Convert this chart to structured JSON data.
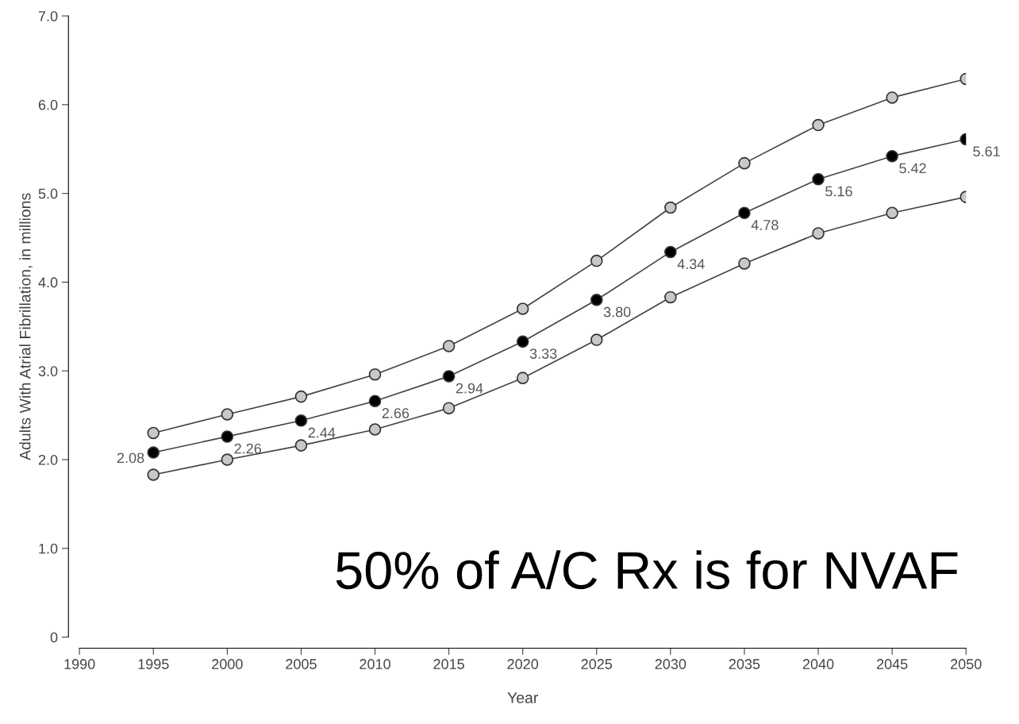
{
  "chart_data": {
    "type": "line",
    "xlabel": "Year",
    "ylabel": "Adults With Atrial Fibrillation, in millions",
    "x": [
      1995,
      2000,
      2005,
      2010,
      2015,
      2020,
      2025,
      2030,
      2035,
      2040,
      2045,
      2050
    ],
    "series": [
      {
        "color": "#c8c8c8",
        "values": [
          2.3,
          2.51,
          2.71,
          2.96,
          3.28,
          3.7,
          4.24,
          4.84,
          5.34,
          5.77,
          6.08,
          6.29
        ]
      },
      {
        "color": "#000000",
        "values": [
          2.08,
          2.26,
          2.44,
          2.66,
          2.94,
          3.33,
          3.8,
          4.34,
          4.78,
          5.16,
          5.42,
          5.61
        ],
        "value_labels": [
          "2.08",
          "2.26",
          "2.44",
          "2.66",
          "2.94",
          "3.33",
          "3.80",
          "4.34",
          "4.78",
          "5.16",
          "5.42",
          "5.61"
        ]
      },
      {
        "color": "#c8c8c8",
        "values": [
          1.83,
          2.0,
          2.16,
          2.34,
          2.58,
          2.92,
          3.35,
          3.83,
          4.21,
          4.55,
          4.78,
          4.96
        ]
      }
    ],
    "xlim": [
      1990,
      2050
    ],
    "xticks": [
      1990,
      1995,
      2000,
      2005,
      2010,
      2015,
      2020,
      2025,
      2030,
      2035,
      2040,
      2045,
      2050
    ],
    "ylim": [
      0,
      7.0
    ],
    "yticks": [
      {
        "value": 0,
        "label": "0"
      },
      {
        "value": 1,
        "label": "1.0"
      },
      {
        "value": 2,
        "label": "2.0"
      },
      {
        "value": 3,
        "label": "3.0"
      },
      {
        "value": 4,
        "label": "4.0"
      },
      {
        "value": 5,
        "label": "5.0"
      },
      {
        "value": 6,
        "label": "6.0"
      },
      {
        "value": 7,
        "label": "7.0"
      }
    ],
    "grid": false,
    "legend": false,
    "marker": "circle",
    "line_style": "solid",
    "annotations": [
      "50% of A/C Rx is for NVAF"
    ]
  }
}
